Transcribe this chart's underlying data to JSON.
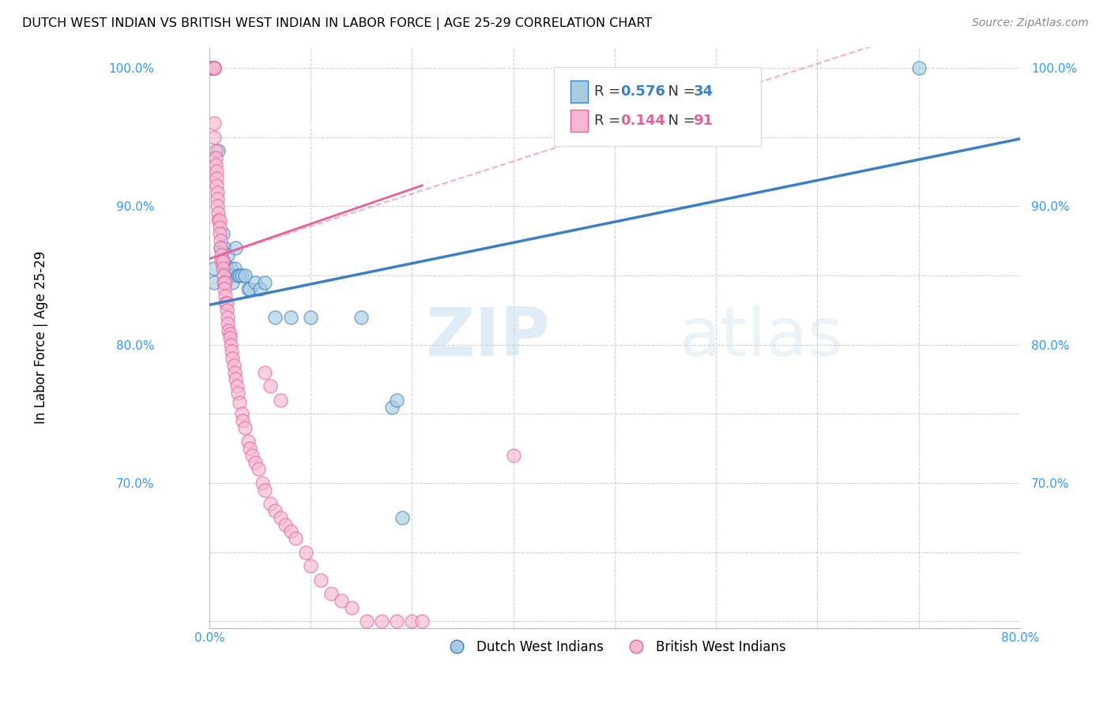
{
  "title": "DUTCH WEST INDIAN VS BRITISH WEST INDIAN IN LABOR FORCE | AGE 25-29 CORRELATION CHART",
  "source": "Source: ZipAtlas.com",
  "ylabel": "In Labor Force | Age 25-29",
  "watermark_zip": "ZIP",
  "watermark_atlas": "atlas",
  "legend_label_blue": "Dutch West Indians",
  "legend_label_pink": "British West Indians",
  "dutch_color": "#a8cce0",
  "british_color": "#f5b8d0",
  "dutch_line_color": "#3b7fc4",
  "british_line_color": "#e8609a",
  "xlim": [
    0.0,
    0.8
  ],
  "ylim": [
    0.595,
    1.015
  ],
  "x_ticks": [
    0.0,
    0.1,
    0.2,
    0.3,
    0.4,
    0.5,
    0.6,
    0.7,
    0.8
  ],
  "y_ticks": [
    0.6,
    0.65,
    0.7,
    0.75,
    0.8,
    0.85,
    0.9,
    0.95,
    1.0
  ],
  "y_tick_labels": [
    "",
    "",
    "70.0%",
    "",
    "80.0%",
    "",
    "90.0%",
    "",
    "100.0%"
  ],
  "x_tick_labels": [
    "0.0%",
    "",
    "",
    "",
    "",
    "",
    "",
    "",
    "80.0%"
  ],
  "R_dutch": "0.576",
  "N_dutch": "34",
  "R_british": "0.144",
  "N_british": "91",
  "dutch_trend": [
    0.0,
    0.8287,
    0.8,
    0.9487
  ],
  "british_trend_solid": [
    0.0,
    0.862,
    0.21,
    0.915
  ],
  "british_trend_dashed": [
    0.0,
    0.862,
    0.8,
    1.05
  ],
  "dutch_x": [
    0.005,
    0.005,
    0.009,
    0.011,
    0.013,
    0.014,
    0.015,
    0.016,
    0.016,
    0.017,
    0.018,
    0.019,
    0.021,
    0.022,
    0.023,
    0.025,
    0.026,
    0.028,
    0.03,
    0.032,
    0.035,
    0.038,
    0.04,
    0.045,
    0.05,
    0.055,
    0.065,
    0.08,
    0.1,
    0.15,
    0.18,
    0.185,
    0.19,
    0.7
  ],
  "dutch_y": [
    0.845,
    0.855,
    0.94,
    0.87,
    0.88,
    0.86,
    0.87,
    0.855,
    0.845,
    0.855,
    0.865,
    0.85,
    0.855,
    0.85,
    0.845,
    0.855,
    0.87,
    0.85,
    0.85,
    0.85,
    0.85,
    0.84,
    0.84,
    0.845,
    0.84,
    0.845,
    0.82,
    0.82,
    0.82,
    0.82,
    0.755,
    0.76,
    0.675,
    1.0
  ],
  "british_x": [
    0.002,
    0.002,
    0.003,
    0.003,
    0.003,
    0.004,
    0.004,
    0.004,
    0.004,
    0.004,
    0.004,
    0.004,
    0.005,
    0.005,
    0.005,
    0.005,
    0.005,
    0.005,
    0.006,
    0.006,
    0.006,
    0.007,
    0.007,
    0.007,
    0.008,
    0.008,
    0.008,
    0.009,
    0.009,
    0.01,
    0.01,
    0.01,
    0.011,
    0.011,
    0.012,
    0.012,
    0.013,
    0.013,
    0.014,
    0.014,
    0.015,
    0.015,
    0.016,
    0.016,
    0.017,
    0.017,
    0.018,
    0.018,
    0.019,
    0.02,
    0.02,
    0.021,
    0.022,
    0.023,
    0.024,
    0.025,
    0.026,
    0.027,
    0.028,
    0.03,
    0.032,
    0.033,
    0.035,
    0.038,
    0.04,
    0.042,
    0.045,
    0.048,
    0.052,
    0.055,
    0.06,
    0.065,
    0.07,
    0.075,
    0.08,
    0.085,
    0.095,
    0.1,
    0.11,
    0.12,
    0.13,
    0.14,
    0.155,
    0.17,
    0.185,
    0.2,
    0.21,
    0.055,
    0.06,
    0.07,
    0.3
  ],
  "british_y": [
    1.0,
    1.0,
    1.0,
    1.0,
    1.0,
    1.0,
    1.0,
    1.0,
    1.0,
    1.0,
    1.0,
    1.0,
    1.0,
    1.0,
    1.0,
    1.0,
    0.96,
    0.95,
    0.94,
    0.935,
    0.93,
    0.925,
    0.92,
    0.915,
    0.91,
    0.905,
    0.9,
    0.895,
    0.89,
    0.89,
    0.885,
    0.88,
    0.875,
    0.87,
    0.865,
    0.86,
    0.86,
    0.855,
    0.85,
    0.845,
    0.845,
    0.84,
    0.835,
    0.83,
    0.83,
    0.825,
    0.82,
    0.815,
    0.81,
    0.808,
    0.805,
    0.8,
    0.795,
    0.79,
    0.785,
    0.78,
    0.775,
    0.77,
    0.765,
    0.758,
    0.75,
    0.745,
    0.74,
    0.73,
    0.725,
    0.72,
    0.715,
    0.71,
    0.7,
    0.695,
    0.685,
    0.68,
    0.675,
    0.67,
    0.665,
    0.66,
    0.65,
    0.64,
    0.63,
    0.62,
    0.615,
    0.61,
    0.6,
    0.6,
    0.6,
    0.6,
    0.6,
    0.78,
    0.77,
    0.76,
    0.72
  ]
}
